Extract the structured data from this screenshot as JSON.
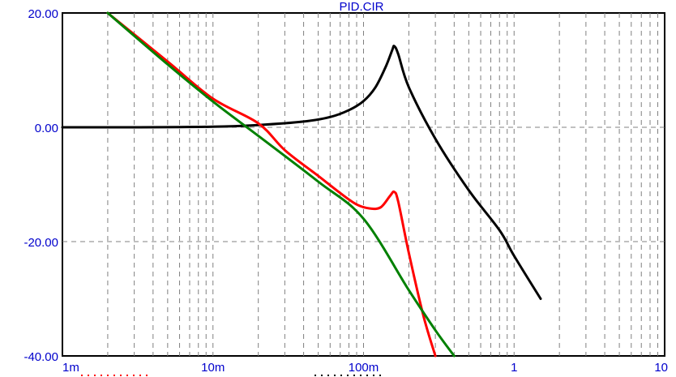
{
  "chart_data": {
    "type": "line",
    "title": "PID.CIR",
    "xscale": "log",
    "xlim": [
      0.001,
      10
    ],
    "ylim": [
      -40,
      20
    ],
    "grid": true,
    "x_tick_labels": [
      {
        "value": 0.001,
        "label": "1m"
      },
      {
        "value": 0.01,
        "label": "10m"
      },
      {
        "value": 0.1,
        "label": "100m"
      },
      {
        "value": 1,
        "label": "1"
      },
      {
        "value": 10,
        "label": "10"
      }
    ],
    "y_tick_labels": [
      {
        "value": 20,
        "label": "20.00"
      },
      {
        "value": 0,
        "label": "0.00"
      },
      {
        "value": -20,
        "label": "-20.00"
      },
      {
        "value": -40,
        "label": "-40.00"
      }
    ],
    "series": [
      {
        "color": "#000000",
        "x": [
          0.001,
          0.003,
          0.01,
          0.02,
          0.04,
          0.06,
          0.08,
          0.1,
          0.12,
          0.14,
          0.155,
          0.16,
          0.17,
          0.2,
          0.3,
          0.5,
          0.8,
          1.0,
          1.5
        ],
        "y": [
          0.0,
          0.0,
          0.1,
          0.4,
          1.0,
          1.8,
          3.0,
          4.6,
          7.0,
          10.5,
          13.5,
          14.2,
          12.8,
          7.0,
          -2.0,
          -11.0,
          -18.0,
          -22.5,
          -30.0
        ]
      },
      {
        "color": "#ff0000",
        "x": [
          0.002,
          0.005,
          0.01,
          0.02,
          0.03,
          0.05,
          0.07,
          0.09,
          0.11,
          0.13,
          0.15,
          0.16,
          0.17,
          0.2,
          0.25,
          0.3
        ],
        "y": [
          20.0,
          11.5,
          5.0,
          0.7,
          -4.0,
          -8.5,
          -11.5,
          -13.5,
          -14.2,
          -14.0,
          -12.0,
          -11.3,
          -13.0,
          -22.0,
          -33.0,
          -40.0
        ]
      },
      {
        "color": "#008000",
        "x": [
          0.002,
          0.005,
          0.01,
          0.02,
          0.05,
          0.1,
          0.2,
          0.3,
          0.4
        ],
        "y": [
          20.0,
          11.0,
          4.5,
          -1.5,
          -9.5,
          -16.0,
          -28.5,
          -35.5,
          -40.0
        ]
      }
    ]
  }
}
